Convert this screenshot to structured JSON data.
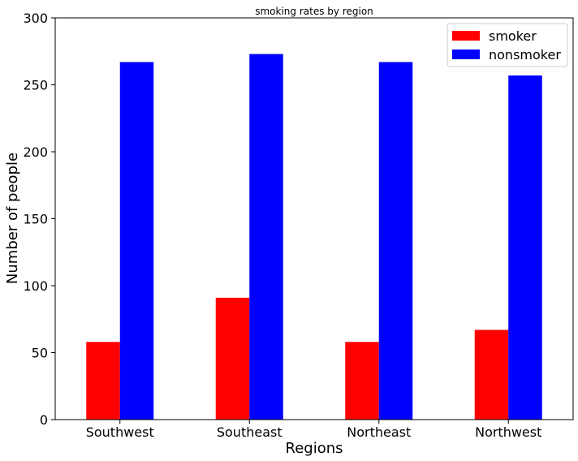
{
  "chart_data": {
    "type": "bar",
    "title": "smoking rates by region",
    "xlabel": "Regions",
    "ylabel": "Number of people",
    "categories": [
      "Southwest",
      "Southeast",
      "Northeast",
      "Northwest"
    ],
    "series": [
      {
        "name": "smoker",
        "values": [
          58,
          91,
          58,
          67
        ],
        "color": "#ff0000"
      },
      {
        "name": "nonsmoker",
        "values": [
          267,
          273,
          267,
          257
        ],
        "color": "#0000ff"
      }
    ],
    "ylim": [
      0,
      300
    ],
    "yticks": [
      0,
      50,
      100,
      150,
      200,
      250,
      300
    ],
    "grid": false,
    "legend_position": "top-right"
  }
}
